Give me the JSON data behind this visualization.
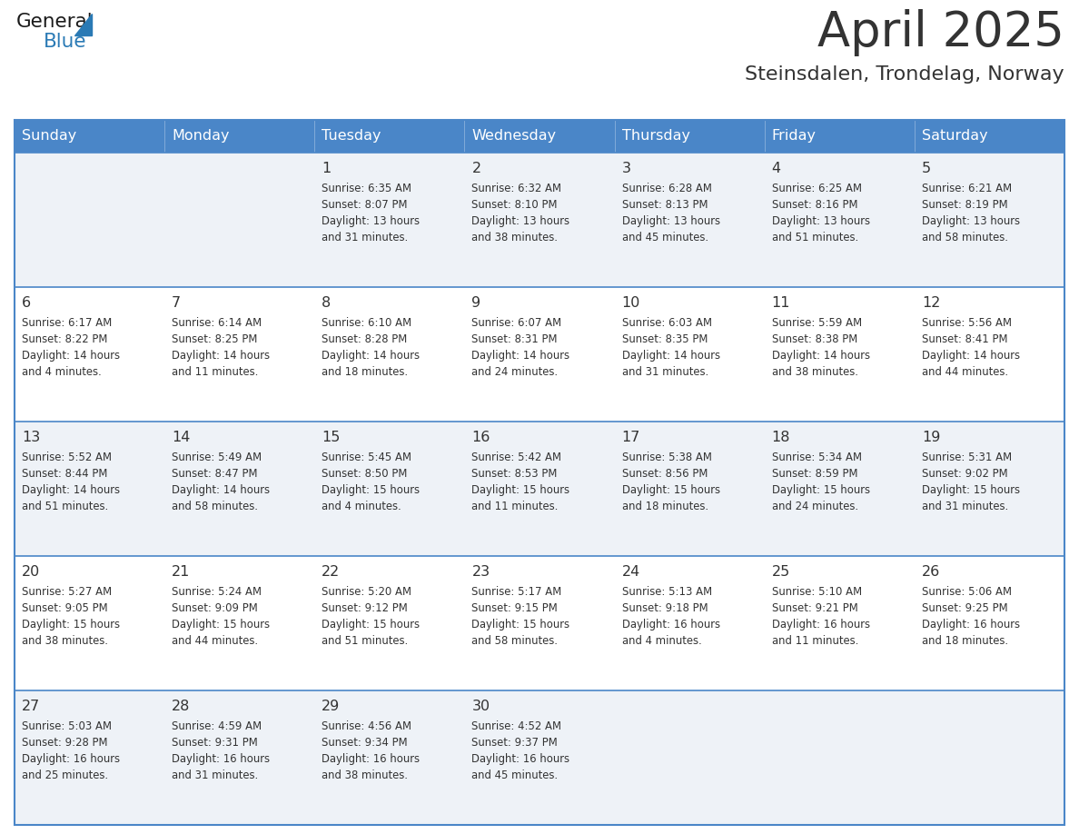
{
  "title": "April 2025",
  "subtitle": "Steinsdalen, Trondelag, Norway",
  "header_bg_color": "#4a86c8",
  "header_text_color": "#ffffff",
  "row_bg_light": "#eef2f7",
  "row_bg_white": "#ffffff",
  "divider_color": "#4a86c8",
  "text_color": "#333333",
  "logo_general_color": "#1a1a1a",
  "logo_blue_color": "#2a7ab5",
  "logo_triangle_color": "#2a7ab5",
  "days_of_week": [
    "Sunday",
    "Monday",
    "Tuesday",
    "Wednesday",
    "Thursday",
    "Friday",
    "Saturday"
  ],
  "calendar_data": [
    [
      {
        "day": "",
        "info": ""
      },
      {
        "day": "",
        "info": ""
      },
      {
        "day": "1",
        "info": "Sunrise: 6:35 AM\nSunset: 8:07 PM\nDaylight: 13 hours\nand 31 minutes."
      },
      {
        "day": "2",
        "info": "Sunrise: 6:32 AM\nSunset: 8:10 PM\nDaylight: 13 hours\nand 38 minutes."
      },
      {
        "day": "3",
        "info": "Sunrise: 6:28 AM\nSunset: 8:13 PM\nDaylight: 13 hours\nand 45 minutes."
      },
      {
        "day": "4",
        "info": "Sunrise: 6:25 AM\nSunset: 8:16 PM\nDaylight: 13 hours\nand 51 minutes."
      },
      {
        "day": "5",
        "info": "Sunrise: 6:21 AM\nSunset: 8:19 PM\nDaylight: 13 hours\nand 58 minutes."
      }
    ],
    [
      {
        "day": "6",
        "info": "Sunrise: 6:17 AM\nSunset: 8:22 PM\nDaylight: 14 hours\nand 4 minutes."
      },
      {
        "day": "7",
        "info": "Sunrise: 6:14 AM\nSunset: 8:25 PM\nDaylight: 14 hours\nand 11 minutes."
      },
      {
        "day": "8",
        "info": "Sunrise: 6:10 AM\nSunset: 8:28 PM\nDaylight: 14 hours\nand 18 minutes."
      },
      {
        "day": "9",
        "info": "Sunrise: 6:07 AM\nSunset: 8:31 PM\nDaylight: 14 hours\nand 24 minutes."
      },
      {
        "day": "10",
        "info": "Sunrise: 6:03 AM\nSunset: 8:35 PM\nDaylight: 14 hours\nand 31 minutes."
      },
      {
        "day": "11",
        "info": "Sunrise: 5:59 AM\nSunset: 8:38 PM\nDaylight: 14 hours\nand 38 minutes."
      },
      {
        "day": "12",
        "info": "Sunrise: 5:56 AM\nSunset: 8:41 PM\nDaylight: 14 hours\nand 44 minutes."
      }
    ],
    [
      {
        "day": "13",
        "info": "Sunrise: 5:52 AM\nSunset: 8:44 PM\nDaylight: 14 hours\nand 51 minutes."
      },
      {
        "day": "14",
        "info": "Sunrise: 5:49 AM\nSunset: 8:47 PM\nDaylight: 14 hours\nand 58 minutes."
      },
      {
        "day": "15",
        "info": "Sunrise: 5:45 AM\nSunset: 8:50 PM\nDaylight: 15 hours\nand 4 minutes."
      },
      {
        "day": "16",
        "info": "Sunrise: 5:42 AM\nSunset: 8:53 PM\nDaylight: 15 hours\nand 11 minutes."
      },
      {
        "day": "17",
        "info": "Sunrise: 5:38 AM\nSunset: 8:56 PM\nDaylight: 15 hours\nand 18 minutes."
      },
      {
        "day": "18",
        "info": "Sunrise: 5:34 AM\nSunset: 8:59 PM\nDaylight: 15 hours\nand 24 minutes."
      },
      {
        "day": "19",
        "info": "Sunrise: 5:31 AM\nSunset: 9:02 PM\nDaylight: 15 hours\nand 31 minutes."
      }
    ],
    [
      {
        "day": "20",
        "info": "Sunrise: 5:27 AM\nSunset: 9:05 PM\nDaylight: 15 hours\nand 38 minutes."
      },
      {
        "day": "21",
        "info": "Sunrise: 5:24 AM\nSunset: 9:09 PM\nDaylight: 15 hours\nand 44 minutes."
      },
      {
        "day": "22",
        "info": "Sunrise: 5:20 AM\nSunset: 9:12 PM\nDaylight: 15 hours\nand 51 minutes."
      },
      {
        "day": "23",
        "info": "Sunrise: 5:17 AM\nSunset: 9:15 PM\nDaylight: 15 hours\nand 58 minutes."
      },
      {
        "day": "24",
        "info": "Sunrise: 5:13 AM\nSunset: 9:18 PM\nDaylight: 16 hours\nand 4 minutes."
      },
      {
        "day": "25",
        "info": "Sunrise: 5:10 AM\nSunset: 9:21 PM\nDaylight: 16 hours\nand 11 minutes."
      },
      {
        "day": "26",
        "info": "Sunrise: 5:06 AM\nSunset: 9:25 PM\nDaylight: 16 hours\nand 18 minutes."
      }
    ],
    [
      {
        "day": "27",
        "info": "Sunrise: 5:03 AM\nSunset: 9:28 PM\nDaylight: 16 hours\nand 25 minutes."
      },
      {
        "day": "28",
        "info": "Sunrise: 4:59 AM\nSunset: 9:31 PM\nDaylight: 16 hours\nand 31 minutes."
      },
      {
        "day": "29",
        "info": "Sunrise: 4:56 AM\nSunset: 9:34 PM\nDaylight: 16 hours\nand 38 minutes."
      },
      {
        "day": "30",
        "info": "Sunrise: 4:52 AM\nSunset: 9:37 PM\nDaylight: 16 hours\nand 45 minutes."
      },
      {
        "day": "",
        "info": ""
      },
      {
        "day": "",
        "info": ""
      },
      {
        "day": "",
        "info": ""
      }
    ]
  ]
}
